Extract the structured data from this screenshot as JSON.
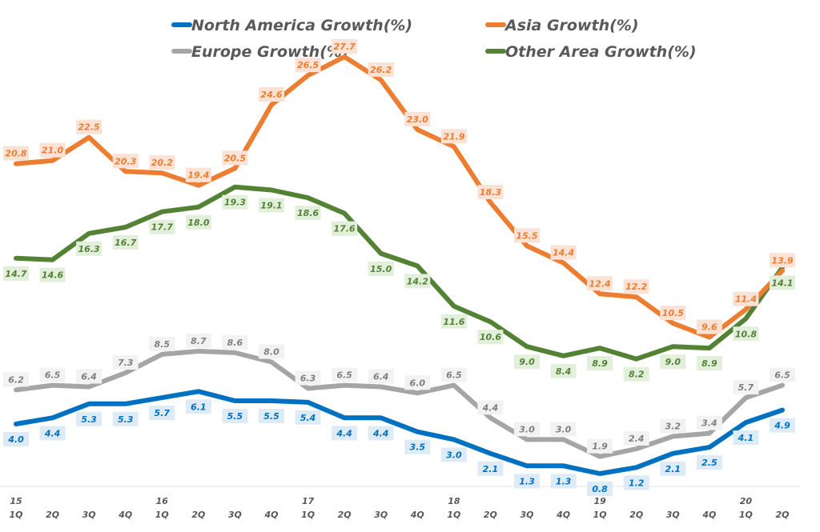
{
  "chart_data": {
    "type": "line",
    "title": "",
    "xlabel": "",
    "ylabel": "",
    "ylim": [
      0,
      28
    ],
    "grid": false,
    "legend_position": "top",
    "x": [
      "15 1Q",
      "2Q",
      "3Q",
      "4Q",
      "16 1Q",
      "2Q",
      "3Q",
      "4Q",
      "17 1Q",
      "2Q",
      "3Q",
      "4Q",
      "18 1Q",
      "2Q",
      "3Q",
      "4Q",
      "19 1Q",
      "2Q",
      "3Q",
      "4Q",
      "20 1Q",
      "2Q"
    ],
    "tick_labels": [
      {
        "year": "15",
        "q": "1Q"
      },
      {
        "year": "",
        "q": "2Q"
      },
      {
        "year": "",
        "q": "3Q"
      },
      {
        "year": "",
        "q": "4Q"
      },
      {
        "year": "16",
        "q": "1Q"
      },
      {
        "year": "",
        "q": "2Q"
      },
      {
        "year": "",
        "q": "3Q"
      },
      {
        "year": "",
        "q": "4Q"
      },
      {
        "year": "17",
        "q": "1Q"
      },
      {
        "year": "",
        "q": "2Q"
      },
      {
        "year": "",
        "q": "3Q"
      },
      {
        "year": "",
        "q": "4Q"
      },
      {
        "year": "18",
        "q": "1Q"
      },
      {
        "year": "",
        "q": "2Q"
      },
      {
        "year": "",
        "q": "3Q"
      },
      {
        "year": "",
        "q": "4Q"
      },
      {
        "year": "19",
        "q": "1Q"
      },
      {
        "year": "",
        "q": "2Q"
      },
      {
        "year": "",
        "q": "3Q"
      },
      {
        "year": "",
        "q": "4Q"
      },
      {
        "year": "20",
        "q": "1Q"
      },
      {
        "year": "",
        "q": "2Q"
      }
    ],
    "series": [
      {
        "name": "North America Growth(%)",
        "key": "north-america",
        "color": "#0070C0",
        "label_bg": "#DDEBF7",
        "label_pos": "below",
        "values": [
          4.0,
          4.4,
          5.3,
          5.3,
          5.7,
          6.1,
          5.5,
          5.5,
          5.4,
          4.4,
          4.4,
          3.5,
          3.0,
          2.1,
          1.3,
          1.3,
          0.8,
          1.2,
          2.1,
          2.5,
          4.1,
          4.9
        ]
      },
      {
        "name": "Asia Growth(%)",
        "key": "asia",
        "color": "#ED7D31",
        "label_bg": "#FBE2D5",
        "label_pos": "above",
        "values": [
          20.8,
          21.0,
          22.5,
          20.3,
          20.2,
          19.4,
          20.5,
          24.6,
          26.5,
          27.7,
          26.2,
          23.0,
          21.9,
          18.3,
          15.5,
          14.4,
          12.4,
          12.2,
          10.5,
          9.6,
          11.4,
          13.9
        ]
      },
      {
        "name": "Europe Growth(%)",
        "key": "europe",
        "color": "#A5A5A5",
        "label_bg": "#F2F2F2",
        "label_pos": "above",
        "values": [
          6.2,
          6.5,
          6.4,
          7.3,
          8.5,
          8.7,
          8.6,
          8.0,
          6.3,
          6.5,
          6.4,
          6.0,
          6.5,
          4.4,
          3.0,
          3.0,
          1.9,
          2.4,
          3.2,
          3.4,
          5.7,
          6.5
        ]
      },
      {
        "name": "Other Area Growth(%)",
        "key": "other-area",
        "color": "#548235",
        "label_bg": "#E2EFDA",
        "label_pos": "below",
        "values": [
          14.7,
          14.6,
          16.3,
          16.7,
          17.7,
          18.0,
          19.3,
          19.1,
          18.6,
          17.6,
          15.0,
          14.2,
          11.6,
          10.6,
          9.0,
          8.4,
          8.9,
          8.2,
          9.0,
          8.9,
          10.8,
          14.1
        ]
      }
    ],
    "legend": [
      {
        "label": "North America Growth(%)",
        "color": "#0070C0"
      },
      {
        "label": "Asia Growth(%)",
        "color": "#ED7D31"
      },
      {
        "label": "Europe Growth(%)",
        "color": "#A5A5A5"
      },
      {
        "label": "Other Area Growth(%)",
        "color": "#548235"
      }
    ],
    "label_text_colors": {
      "north-america": "#0070C0",
      "asia": "#ED7D31",
      "europe": "#7F7F7F",
      "other-area": "#548235"
    }
  }
}
